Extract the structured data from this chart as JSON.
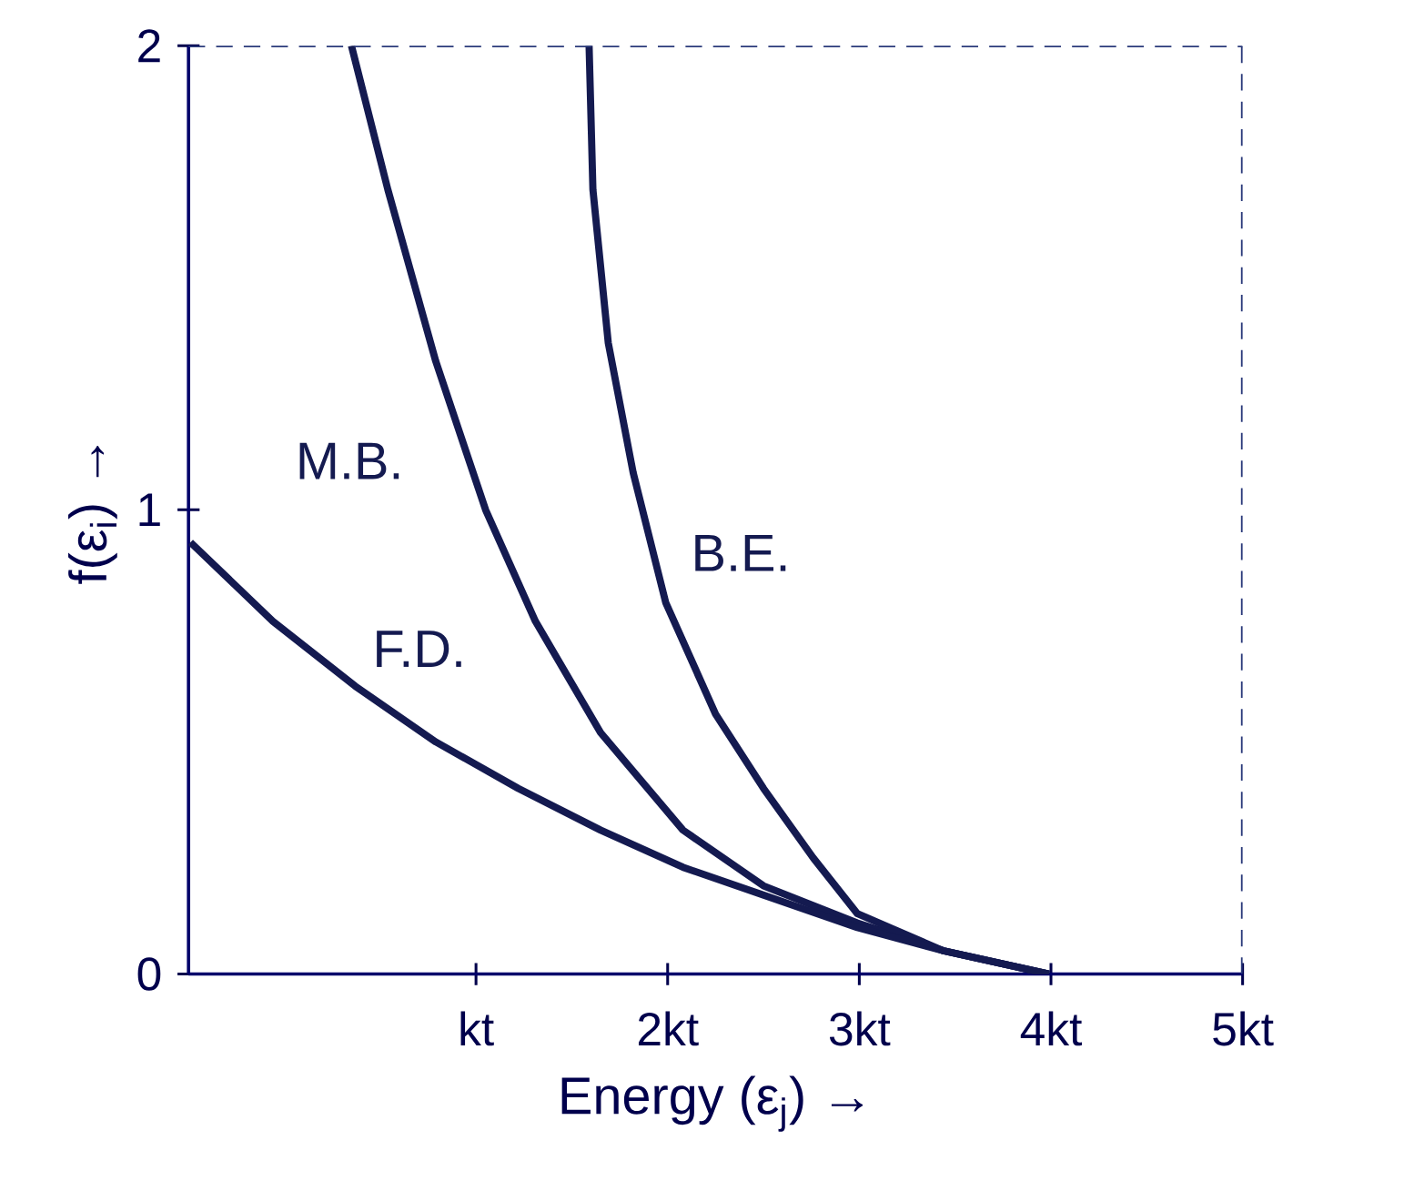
{
  "chart_data": {
    "type": "line",
    "xlabel": "Energy (ε$_{j}$) →",
    "ylabel": "f(ε$_{i}$) →",
    "xlim": [
      -0.5,
      5
    ],
    "ylim": [
      0,
      2
    ],
    "xticks": [
      {
        "value": 1,
        "label": "kt"
      },
      {
        "value": 2,
        "label": "2kt"
      },
      {
        "value": 3,
        "label": "3kt"
      },
      {
        "value": 4,
        "label": "4kt"
      },
      {
        "value": 5,
        "label": "5kt"
      }
    ],
    "yticks": [
      0,
      1,
      2
    ],
    "grid": false,
    "legend": false,
    "marker": "none",
    "line_style": "solid",
    "ref_lines": [
      {
        "axis": "y",
        "value": 2,
        "line_style": "dashed",
        "color": "#2a3a7a"
      },
      {
        "axis": "x",
        "value": 5,
        "line_style": "dashed",
        "color": "#2a3a7a"
      }
    ],
    "series": [
      {
        "name": "M.B.",
        "color": "#141a50",
        "x": [
          0.35,
          0.54,
          0.79,
          1.05,
          1.31,
          1.65,
          2.08,
          2.5,
          2.99,
          3.44,
          3.99
        ],
        "values": [
          2.0,
          1.69,
          1.32,
          1.0,
          0.76,
          0.52,
          0.31,
          0.19,
          0.11,
          0.05,
          0.0
        ]
      },
      {
        "name": "B.E.",
        "color": "#141a50",
        "x": [
          1.59,
          1.61,
          1.69,
          1.82,
          1.99,
          2.25,
          2.5,
          2.76,
          2.99,
          3.44,
          3.99
        ],
        "values": [
          2.0,
          1.69,
          1.36,
          1.08,
          0.8,
          0.56,
          0.4,
          0.25,
          0.13,
          0.05,
          0.0
        ]
      },
      {
        "name": "F.D.",
        "color": "#141a50",
        "x": [
          -0.49,
          -0.06,
          0.37,
          0.79,
          1.22,
          1.65,
          2.08,
          2.5,
          2.99,
          3.44,
          3.99
        ],
        "values": [
          0.93,
          0.76,
          0.62,
          0.5,
          0.4,
          0.31,
          0.23,
          0.17,
          0.1,
          0.05,
          0.0
        ]
      }
    ]
  }
}
